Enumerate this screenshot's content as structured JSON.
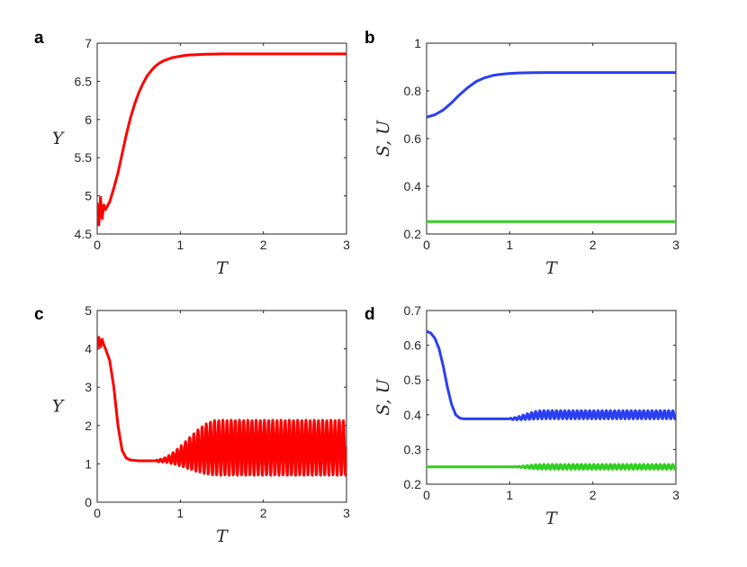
{
  "chart_data": [
    {
      "panel": "a",
      "type": "line",
      "xlabel": "T",
      "ylabel": "Y",
      "xlim": [
        0,
        3
      ],
      "ylim": [
        4.5,
        7
      ],
      "xticks": [
        "0",
        "1",
        "2",
        "3"
      ],
      "yticks": [
        "4.5",
        "5",
        "5.5",
        "6",
        "6.5",
        "7"
      ],
      "grid": false,
      "legend": "none",
      "series": [
        {
          "color": "#ff0000",
          "x": [
            0,
            0.02,
            0.04,
            0.06,
            0.08,
            0.1,
            0.15,
            0.2,
            0.25,
            0.3,
            0.35,
            0.4,
            0.45,
            0.5,
            0.55,
            0.6,
            0.65,
            0.7,
            0.75,
            0.8,
            0.85,
            0.9,
            0.95,
            1.0,
            1.1,
            1.2,
            1.3,
            1.4,
            1.5,
            1.7,
            2.0,
            2.5,
            3.0
          ],
          "y": [
            4.9,
            4.62,
            4.98,
            4.7,
            4.88,
            4.82,
            4.92,
            5.1,
            5.3,
            5.55,
            5.8,
            6.02,
            6.2,
            6.35,
            6.47,
            6.57,
            6.64,
            6.7,
            6.74,
            6.77,
            6.79,
            6.81,
            6.82,
            6.83,
            6.845,
            6.85,
            6.855,
            6.857,
            6.86,
            6.86,
            6.86,
            6.86,
            6.86
          ]
        }
      ]
    },
    {
      "panel": "b",
      "type": "line",
      "xlabel": "T",
      "ylabel": "S, U",
      "xlim": [
        0,
        3
      ],
      "ylim": [
        0.2,
        1
      ],
      "xticks": [
        "0",
        "1",
        "2",
        "3"
      ],
      "yticks": [
        "0.2",
        "0.4",
        "0.6",
        "0.8",
        "1"
      ],
      "grid": false,
      "legend": "none",
      "series": [
        {
          "color": "#2a3ff0",
          "x": [
            0,
            0.1,
            0.2,
            0.3,
            0.4,
            0.5,
            0.6,
            0.7,
            0.8,
            0.9,
            1.0,
            1.1,
            1.2,
            1.4,
            1.6,
            2.0,
            2.5,
            3.0
          ],
          "y": [
            0.69,
            0.7,
            0.72,
            0.75,
            0.785,
            0.815,
            0.84,
            0.855,
            0.865,
            0.87,
            0.873,
            0.875,
            0.876,
            0.877,
            0.877,
            0.877,
            0.877,
            0.877
          ]
        },
        {
          "color": "#2fcf1f",
          "x": [
            0,
            3
          ],
          "y": [
            0.252,
            0.252
          ]
        }
      ]
    },
    {
      "panel": "c",
      "type": "line",
      "xlabel": "T",
      "ylabel": "Y",
      "xlim": [
        0,
        3
      ],
      "ylim": [
        0,
        5
      ],
      "xticks": [
        "0",
        "1",
        "2",
        "3"
      ],
      "yticks": [
        "0",
        "1",
        "2",
        "3",
        "4",
        "5"
      ],
      "grid": false,
      "legend": "none",
      "oscillation": {
        "base": 1.42,
        "amplitude_max": 0.72,
        "onset": 0.72,
        "full_at": 1.45,
        "period": 0.05,
        "t_end": 3.0
      },
      "series": [
        {
          "color": "#ff0000",
          "x": [
            0,
            0.02,
            0.04,
            0.06,
            0.08,
            0.1,
            0.15,
            0.2,
            0.25,
            0.3,
            0.35,
            0.4,
            0.45,
            0.5,
            0.6,
            0.7
          ],
          "y": [
            4.0,
            4.3,
            4.05,
            4.25,
            4.1,
            4.0,
            3.7,
            3.0,
            2.0,
            1.35,
            1.15,
            1.1,
            1.09,
            1.08,
            1.08,
            1.08
          ]
        }
      ]
    },
    {
      "panel": "d",
      "type": "line",
      "xlabel": "T",
      "ylabel": "S, U",
      "xlim": [
        0,
        3
      ],
      "ylim": [
        0.2,
        0.7
      ],
      "xticks": [
        "0",
        "1",
        "2",
        "3"
      ],
      "yticks": [
        "0.2",
        "0.3",
        "0.4",
        "0.5",
        "0.6",
        "0.7"
      ],
      "grid": false,
      "legend": "none",
      "series": [
        {
          "color": "#2a3ff0",
          "x": [
            0,
            0.05,
            0.1,
            0.15,
            0.2,
            0.25,
            0.3,
            0.35,
            0.4,
            0.45,
            0.5,
            0.6,
            0.7,
            0.8,
            0.9,
            1.0
          ],
          "y": [
            0.64,
            0.635,
            0.62,
            0.59,
            0.54,
            0.48,
            0.43,
            0.4,
            0.39,
            0.388,
            0.388,
            0.388,
            0.388,
            0.388,
            0.388,
            0.388
          ],
          "oscillation": {
            "base": 0.4,
            "amplitude_max": 0.012,
            "onset": 0.9,
            "full_at": 1.4,
            "period": 0.05,
            "t_end": 3.0
          }
        },
        {
          "color": "#2fcf1f",
          "x": [
            0,
            1.0
          ],
          "y": [
            0.25,
            0.25
          ],
          "oscillation": {
            "base": 0.25,
            "amplitude_max": 0.007,
            "onset": 1.0,
            "full_at": 1.4,
            "period": 0.05,
            "t_end": 3.0
          }
        }
      ]
    }
  ]
}
